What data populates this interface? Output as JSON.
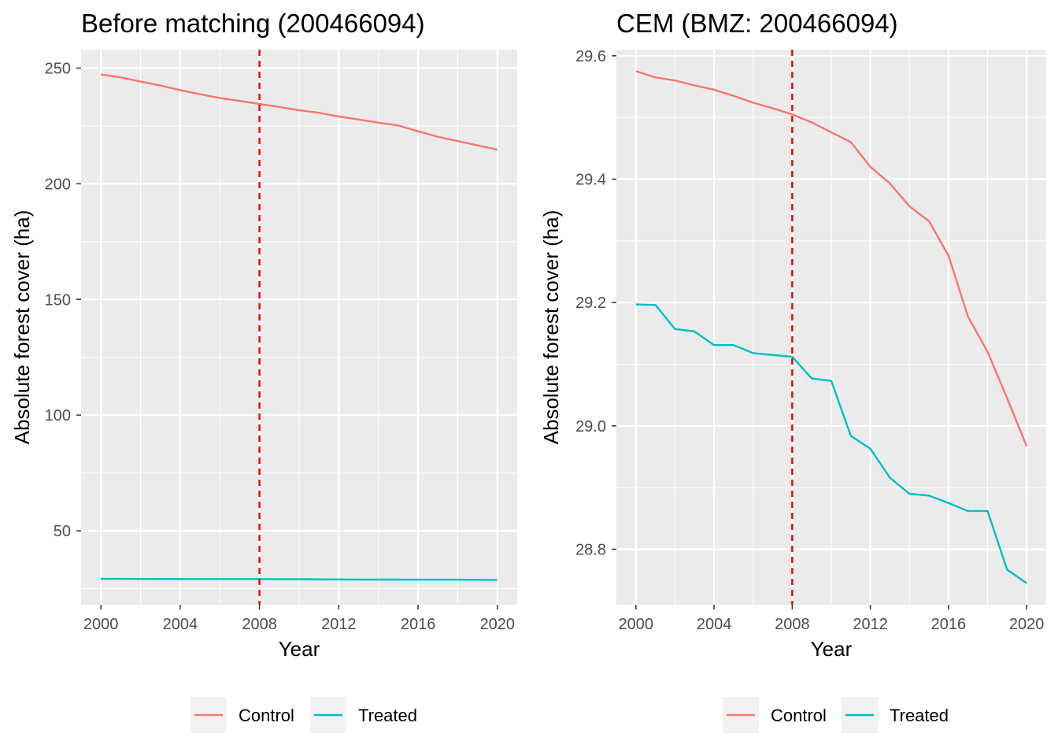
{
  "chart_data": [
    {
      "type": "line",
      "title": "Before matching (200466094)",
      "xlabel": "Year",
      "ylabel": "Absolute forest cover (ha)",
      "xlim": [
        1999,
        2021
      ],
      "ylim": [
        18,
        258
      ],
      "xticks": [
        2000,
        2004,
        2008,
        2012,
        2016,
        2020
      ],
      "yticks": [
        50,
        100,
        150,
        200,
        250
      ],
      "grid": true,
      "vline": {
        "x": 2008,
        "color": "#ee0000",
        "style": "dashed"
      },
      "x": [
        2000,
        2001,
        2002,
        2003,
        2004,
        2005,
        2006,
        2007,
        2008,
        2009,
        2010,
        2011,
        2012,
        2013,
        2014,
        2015,
        2016,
        2017,
        2018,
        2019,
        2020
      ],
      "series": [
        {
          "name": "Control",
          "color": "#F8766D",
          "values": [
            247.2,
            246.0,
            244.2,
            242.5,
            240.5,
            238.7,
            237.1,
            235.8,
            234.5,
            233.2,
            231.8,
            230.7,
            229.1,
            227.8,
            226.4,
            225.2,
            222.7,
            220.3,
            218.5,
            216.6,
            214.8
          ]
        },
        {
          "name": "Treated",
          "color": "#00BFC4",
          "values": [
            29.2,
            29.2,
            29.16,
            29.15,
            29.13,
            29.13,
            29.12,
            29.11,
            29.11,
            29.08,
            29.07,
            28.98,
            28.96,
            28.92,
            28.89,
            28.89,
            28.87,
            28.86,
            28.86,
            28.77,
            28.74
          ]
        }
      ],
      "legend": {
        "position": "bottom",
        "entries": [
          "Control",
          "Treated"
        ]
      }
    },
    {
      "type": "line",
      "title": "CEM (BMZ: 200466094)",
      "xlabel": "Year",
      "ylabel": "Absolute forest cover (ha)",
      "xlim": [
        1999,
        2021
      ],
      "ylim": [
        28.71,
        29.61
      ],
      "xticks": [
        2000,
        2004,
        2008,
        2012,
        2016,
        2020
      ],
      "yticks": [
        28.8,
        29.0,
        29.2,
        29.4,
        29.6
      ],
      "ytick_labels": [
        "28.8",
        "29.0",
        "29.2",
        "29.4",
        "29.6"
      ],
      "grid": true,
      "vline": {
        "x": 2008,
        "color": "#ee0000",
        "style": "dashed"
      },
      "x": [
        2000,
        2001,
        2002,
        2003,
        2004,
        2005,
        2006,
        2007,
        2008,
        2009,
        2010,
        2011,
        2012,
        2013,
        2014,
        2015,
        2016,
        2017,
        2018,
        2019,
        2020
      ],
      "series": [
        {
          "name": "Control",
          "color": "#F8766D",
          "values": [
            29.575,
            29.565,
            29.56,
            29.552,
            29.545,
            29.535,
            29.524,
            29.515,
            29.505,
            29.492,
            29.476,
            29.46,
            29.42,
            29.393,
            29.356,
            29.332,
            29.276,
            29.177,
            29.12,
            29.045,
            28.967
          ]
        },
        {
          "name": "Treated",
          "color": "#00BFC4",
          "values": [
            29.197,
            29.196,
            29.157,
            29.153,
            29.131,
            29.131,
            29.118,
            29.115,
            29.112,
            29.077,
            29.073,
            28.984,
            28.963,
            28.916,
            28.89,
            28.887,
            28.875,
            28.862,
            28.862,
            28.767,
            28.745
          ]
        }
      ],
      "legend": {
        "position": "bottom",
        "entries": [
          "Control",
          "Treated"
        ]
      }
    }
  ]
}
